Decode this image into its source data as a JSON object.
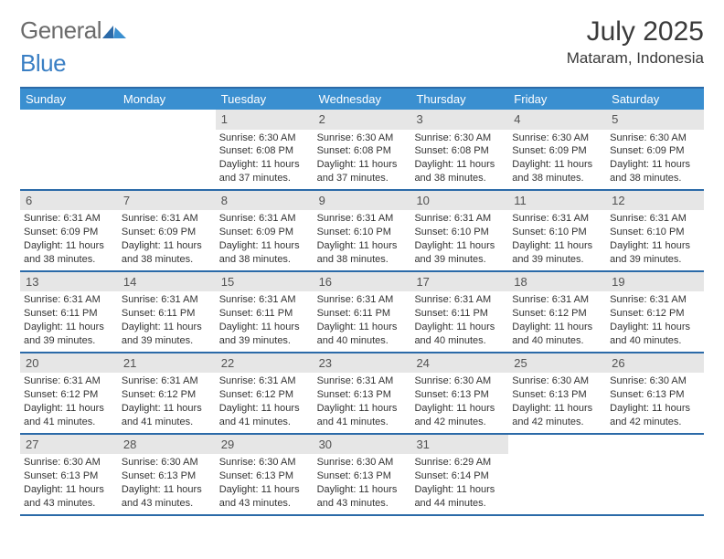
{
  "brand": {
    "word1": "General",
    "word2": "Blue"
  },
  "title": "July 2025",
  "location": "Mataram, Indonesia",
  "colors": {
    "header_bg": "#3a8fd0",
    "rule": "#2b6aa8",
    "daynum_bg": "#e6e6e6",
    "text": "#333333",
    "logo_gray": "#6b6b6b",
    "logo_blue": "#3a7fc4"
  },
  "day_headers": [
    "Sunday",
    "Monday",
    "Tuesday",
    "Wednesday",
    "Thursday",
    "Friday",
    "Saturday"
  ],
  "weeks": [
    [
      {
        "n": "",
        "sr": "",
        "ss": "",
        "dl": ""
      },
      {
        "n": "",
        "sr": "",
        "ss": "",
        "dl": ""
      },
      {
        "n": "1",
        "sr": "Sunrise: 6:30 AM",
        "ss": "Sunset: 6:08 PM",
        "dl": "Daylight: 11 hours and 37 minutes."
      },
      {
        "n": "2",
        "sr": "Sunrise: 6:30 AM",
        "ss": "Sunset: 6:08 PM",
        "dl": "Daylight: 11 hours and 37 minutes."
      },
      {
        "n": "3",
        "sr": "Sunrise: 6:30 AM",
        "ss": "Sunset: 6:08 PM",
        "dl": "Daylight: 11 hours and 38 minutes."
      },
      {
        "n": "4",
        "sr": "Sunrise: 6:30 AM",
        "ss": "Sunset: 6:09 PM",
        "dl": "Daylight: 11 hours and 38 minutes."
      },
      {
        "n": "5",
        "sr": "Sunrise: 6:30 AM",
        "ss": "Sunset: 6:09 PM",
        "dl": "Daylight: 11 hours and 38 minutes."
      }
    ],
    [
      {
        "n": "6",
        "sr": "Sunrise: 6:31 AM",
        "ss": "Sunset: 6:09 PM",
        "dl": "Daylight: 11 hours and 38 minutes."
      },
      {
        "n": "7",
        "sr": "Sunrise: 6:31 AM",
        "ss": "Sunset: 6:09 PM",
        "dl": "Daylight: 11 hours and 38 minutes."
      },
      {
        "n": "8",
        "sr": "Sunrise: 6:31 AM",
        "ss": "Sunset: 6:09 PM",
        "dl": "Daylight: 11 hours and 38 minutes."
      },
      {
        "n": "9",
        "sr": "Sunrise: 6:31 AM",
        "ss": "Sunset: 6:10 PM",
        "dl": "Daylight: 11 hours and 38 minutes."
      },
      {
        "n": "10",
        "sr": "Sunrise: 6:31 AM",
        "ss": "Sunset: 6:10 PM",
        "dl": "Daylight: 11 hours and 39 minutes."
      },
      {
        "n": "11",
        "sr": "Sunrise: 6:31 AM",
        "ss": "Sunset: 6:10 PM",
        "dl": "Daylight: 11 hours and 39 minutes."
      },
      {
        "n": "12",
        "sr": "Sunrise: 6:31 AM",
        "ss": "Sunset: 6:10 PM",
        "dl": "Daylight: 11 hours and 39 minutes."
      }
    ],
    [
      {
        "n": "13",
        "sr": "Sunrise: 6:31 AM",
        "ss": "Sunset: 6:11 PM",
        "dl": "Daylight: 11 hours and 39 minutes."
      },
      {
        "n": "14",
        "sr": "Sunrise: 6:31 AM",
        "ss": "Sunset: 6:11 PM",
        "dl": "Daylight: 11 hours and 39 minutes."
      },
      {
        "n": "15",
        "sr": "Sunrise: 6:31 AM",
        "ss": "Sunset: 6:11 PM",
        "dl": "Daylight: 11 hours and 39 minutes."
      },
      {
        "n": "16",
        "sr": "Sunrise: 6:31 AM",
        "ss": "Sunset: 6:11 PM",
        "dl": "Daylight: 11 hours and 40 minutes."
      },
      {
        "n": "17",
        "sr": "Sunrise: 6:31 AM",
        "ss": "Sunset: 6:11 PM",
        "dl": "Daylight: 11 hours and 40 minutes."
      },
      {
        "n": "18",
        "sr": "Sunrise: 6:31 AM",
        "ss": "Sunset: 6:12 PM",
        "dl": "Daylight: 11 hours and 40 minutes."
      },
      {
        "n": "19",
        "sr": "Sunrise: 6:31 AM",
        "ss": "Sunset: 6:12 PM",
        "dl": "Daylight: 11 hours and 40 minutes."
      }
    ],
    [
      {
        "n": "20",
        "sr": "Sunrise: 6:31 AM",
        "ss": "Sunset: 6:12 PM",
        "dl": "Daylight: 11 hours and 41 minutes."
      },
      {
        "n": "21",
        "sr": "Sunrise: 6:31 AM",
        "ss": "Sunset: 6:12 PM",
        "dl": "Daylight: 11 hours and 41 minutes."
      },
      {
        "n": "22",
        "sr": "Sunrise: 6:31 AM",
        "ss": "Sunset: 6:12 PM",
        "dl": "Daylight: 11 hours and 41 minutes."
      },
      {
        "n": "23",
        "sr": "Sunrise: 6:31 AM",
        "ss": "Sunset: 6:13 PM",
        "dl": "Daylight: 11 hours and 41 minutes."
      },
      {
        "n": "24",
        "sr": "Sunrise: 6:30 AM",
        "ss": "Sunset: 6:13 PM",
        "dl": "Daylight: 11 hours and 42 minutes."
      },
      {
        "n": "25",
        "sr": "Sunrise: 6:30 AM",
        "ss": "Sunset: 6:13 PM",
        "dl": "Daylight: 11 hours and 42 minutes."
      },
      {
        "n": "26",
        "sr": "Sunrise: 6:30 AM",
        "ss": "Sunset: 6:13 PM",
        "dl": "Daylight: 11 hours and 42 minutes."
      }
    ],
    [
      {
        "n": "27",
        "sr": "Sunrise: 6:30 AM",
        "ss": "Sunset: 6:13 PM",
        "dl": "Daylight: 11 hours and 43 minutes."
      },
      {
        "n": "28",
        "sr": "Sunrise: 6:30 AM",
        "ss": "Sunset: 6:13 PM",
        "dl": "Daylight: 11 hours and 43 minutes."
      },
      {
        "n": "29",
        "sr": "Sunrise: 6:30 AM",
        "ss": "Sunset: 6:13 PM",
        "dl": "Daylight: 11 hours and 43 minutes."
      },
      {
        "n": "30",
        "sr": "Sunrise: 6:30 AM",
        "ss": "Sunset: 6:13 PM",
        "dl": "Daylight: 11 hours and 43 minutes."
      },
      {
        "n": "31",
        "sr": "Sunrise: 6:29 AM",
        "ss": "Sunset: 6:14 PM",
        "dl": "Daylight: 11 hours and 44 minutes."
      },
      {
        "n": "",
        "sr": "",
        "ss": "",
        "dl": ""
      },
      {
        "n": "",
        "sr": "",
        "ss": "",
        "dl": ""
      }
    ]
  ]
}
